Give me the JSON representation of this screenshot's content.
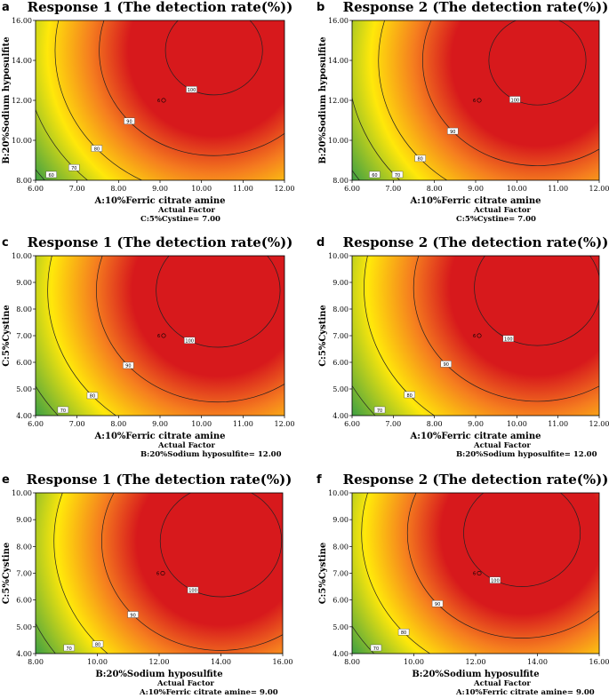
{
  "chart_data": [
    {
      "id": "a",
      "type": "heatmap",
      "title": "Response 1 (The detection rate(%))",
      "xlabel": "A:10%Ferric citrate amine",
      "ylabel": "B:20%Sodium hyposulfite",
      "x_ticks": [
        "6.00",
        "7.00",
        "8.00",
        "9.00",
        "10.00",
        "11.00",
        "12.00"
      ],
      "y_ticks": [
        "8.00",
        "10.00",
        "12.00",
        "14.00",
        "16.00"
      ],
      "xlim": [
        6,
        12
      ],
      "ylim": [
        8,
        16
      ],
      "actual_factor_title": "Actual Factor",
      "actual_factor": "C:5%Cystine= 7.00",
      "contour_levels": [
        "60",
        "70",
        "80",
        "90",
        "100"
      ],
      "center_label": "6",
      "optimum": [
        10.3,
        14.5
      ]
    },
    {
      "id": "b",
      "type": "heatmap",
      "title": "Response 2 (The detection rate(%))",
      "xlabel": "A:10%Ferric citrate amine",
      "ylabel": "B:20%Sodium hyposulfite",
      "x_ticks": [
        "6.00",
        "7.00",
        "8.00",
        "9.00",
        "10.00",
        "11.00",
        "12.00"
      ],
      "y_ticks": [
        "8.00",
        "10.00",
        "12.00",
        "14.00",
        "16.00"
      ],
      "xlim": [
        6,
        12
      ],
      "ylim": [
        8,
        16
      ],
      "actual_factor_title": "Actual Factor",
      "actual_factor": "C:5%Cystine= 7.00",
      "contour_levels": [
        "60",
        "70",
        "80",
        "90",
        "100"
      ],
      "center_label": "6",
      "optimum": [
        10.5,
        14.0
      ]
    },
    {
      "id": "c",
      "type": "heatmap",
      "title": "Response 1 (The detection rate(%))",
      "xlabel": "A:10%Ferric citrate amine",
      "ylabel": "C:5%Cystine",
      "x_ticks": [
        "6.00",
        "7.00",
        "8.00",
        "9.00",
        "10.00",
        "11.00",
        "12.00"
      ],
      "y_ticks": [
        "4.00",
        "5.00",
        "6.00",
        "7.00",
        "8.00",
        "9.00",
        "10.00"
      ],
      "xlim": [
        6,
        12
      ],
      "ylim": [
        4,
        10
      ],
      "actual_factor_title": "Actual Factor",
      "actual_factor": "B:20%Sodium hyposulfite= 12.00",
      "contour_levels": [
        "70",
        "80",
        "90",
        "100"
      ],
      "center_label": "6",
      "optimum": [
        10.4,
        8.7
      ]
    },
    {
      "id": "d",
      "type": "heatmap",
      "title": "Response 2 (The detection rate(%))",
      "xlabel": "A:10%Ferric citrate amine",
      "ylabel": "C:5%Cystine",
      "x_ticks": [
        "6.00",
        "7.00",
        "8.00",
        "9.00",
        "10.00",
        "11.00",
        "12.00"
      ],
      "y_ticks": [
        "4.00",
        "5.00",
        "6.00",
        "7.00",
        "8.00",
        "9.00",
        "10.00"
      ],
      "xlim": [
        6,
        12
      ],
      "ylim": [
        4,
        10
      ],
      "actual_factor_title": "Actual Factor",
      "actual_factor": "B:20%Sodium hyposulfite= 12.00",
      "contour_levels": [
        "70",
        "80",
        "90",
        "100"
      ],
      "center_label": "6",
      "optimum": [
        10.5,
        8.8
      ]
    },
    {
      "id": "e",
      "type": "heatmap",
      "title": "Response 1 (The detection rate(%))",
      "xlabel": "B:20%Sodium hyposulfite",
      "ylabel": "C:5%Cystine",
      "x_ticks": [
        "8.00",
        "10.00",
        "12.00",
        "14.00",
        "16.00"
      ],
      "y_ticks": [
        "4.00",
        "5.00",
        "6.00",
        "7.00",
        "8.00",
        "9.00",
        "10.00"
      ],
      "xlim": [
        8,
        16
      ],
      "ylim": [
        4,
        10
      ],
      "actual_factor_title": "Actual Factor",
      "actual_factor": "A:10%Ferric citrate amine= 9.00",
      "contour_levels": [
        "70",
        "80",
        "90",
        "100"
      ],
      "center_label": "6",
      "optimum": [
        14.0,
        8.2
      ]
    },
    {
      "id": "f",
      "type": "heatmap",
      "title": "Response 2 (The detection rate(%))",
      "xlabel": "B:20%Sodium hyposulfite",
      "ylabel": "C:5%Cystine",
      "x_ticks": [
        "8.00",
        "10.00",
        "12.00",
        "14.00",
        "16.00"
      ],
      "y_ticks": [
        "4.00",
        "5.00",
        "6.00",
        "7.00",
        "8.00",
        "9.00",
        "10.00"
      ],
      "xlim": [
        8,
        16
      ],
      "ylim": [
        4,
        10
      ],
      "actual_factor_title": "Actual Factor",
      "actual_factor": "A:10%Ferric citrate amine= 9.00",
      "contour_levels": [
        "70",
        "80",
        "90",
        "100"
      ],
      "center_label": "6",
      "optimum": [
        13.5,
        8.5
      ]
    }
  ],
  "colors": {
    "red": "#d7191c",
    "orange": "#f57d1f",
    "yellow": "#ffe80a",
    "green": "#2e9a47"
  }
}
